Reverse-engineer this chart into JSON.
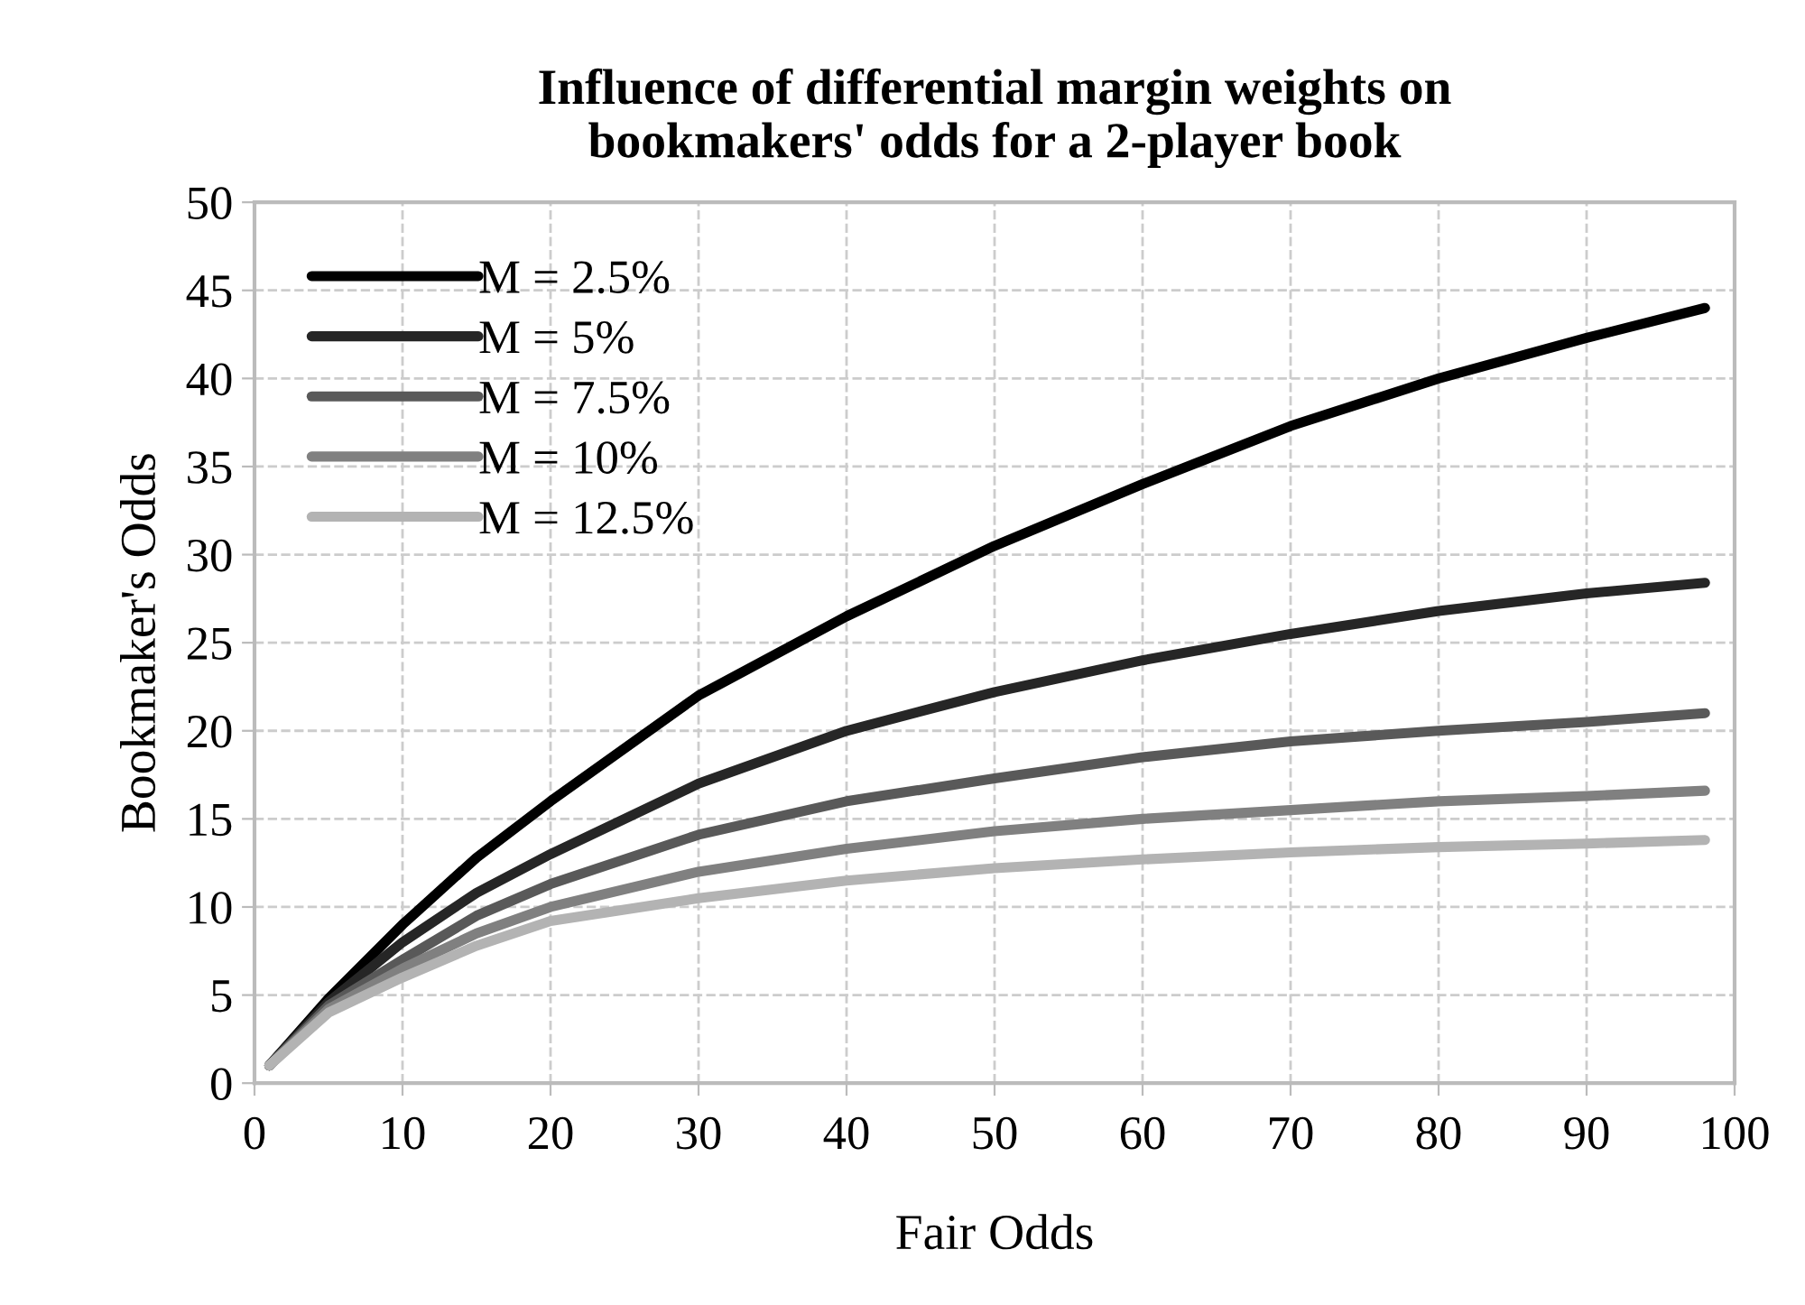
{
  "chart_data": {
    "type": "line",
    "title": "Influence of differential margin weights on\nbookmakers' odds for a 2-player book",
    "xlabel": "Fair Odds",
    "ylabel": "Bookmaker's Odds",
    "x": [
      1,
      5,
      10,
      15,
      20,
      30,
      40,
      50,
      60,
      70,
      80,
      90,
      98
    ],
    "series": [
      {
        "name": "M = 2.5%",
        "color": "#000000",
        "values": [
          1,
          4.8,
          9,
          12.8,
          16,
          22,
          26.5,
          30.5,
          34,
          37.3,
          40,
          42.3,
          44
        ]
      },
      {
        "name": "M = 5%",
        "color": "#262626",
        "values": [
          1,
          4.6,
          8,
          10.8,
          13,
          17,
          20,
          22.2,
          24,
          25.5,
          26.8,
          27.8,
          28.4
        ]
      },
      {
        "name": "M = 7.5%",
        "color": "#595959",
        "values": [
          1,
          4.4,
          7,
          9.5,
          11.3,
          14.1,
          16,
          17.3,
          18.5,
          19.4,
          20,
          20.5,
          21
        ]
      },
      {
        "name": "M = 10%",
        "color": "#808080",
        "values": [
          1,
          4.2,
          6.5,
          8.5,
          10,
          12,
          13.3,
          14.3,
          15,
          15.5,
          16,
          16.3,
          16.6
        ]
      },
      {
        "name": "M = 12.5%",
        "color": "#b3b3b3",
        "values": [
          1,
          4,
          6,
          7.8,
          9.2,
          10.5,
          11.5,
          12.2,
          12.7,
          13.1,
          13.4,
          13.6,
          13.8
        ]
      }
    ],
    "xlim": [
      0,
      100
    ],
    "xticks": [
      0,
      10,
      20,
      30,
      40,
      50,
      60,
      70,
      80,
      90,
      100
    ],
    "ylim": [
      0,
      50
    ],
    "yticks": [
      0,
      5,
      10,
      15,
      20,
      25,
      30,
      35,
      40,
      45,
      50
    ],
    "grid": true,
    "legend": "top left",
    "marker": "none",
    "line_style": "solid"
  }
}
